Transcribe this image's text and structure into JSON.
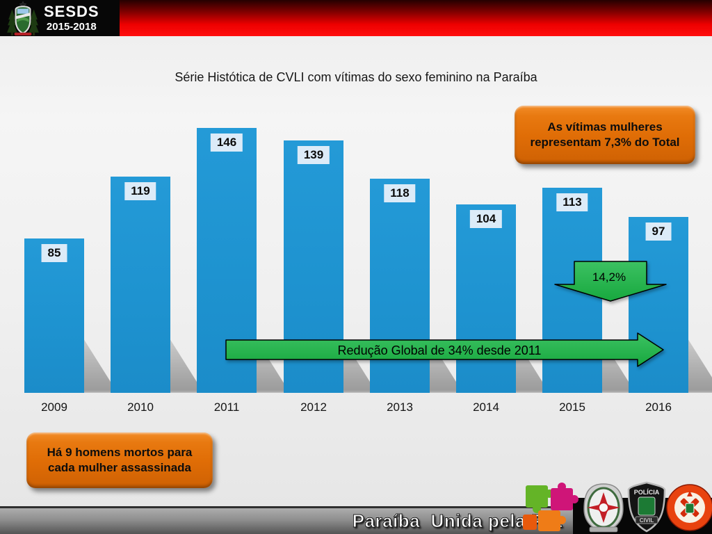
{
  "header": {
    "org": "SESDS",
    "period": "2015-2018"
  },
  "title": "Série Histótica de CVLI com vítimas do sexo feminino na Paraíba",
  "chart_data": {
    "type": "bar",
    "title": "Série Histótica de CVLI com vítimas do sexo feminino na Paraíba",
    "categories": [
      "2009",
      "2010",
      "2011",
      "2012",
      "2013",
      "2014",
      "2015",
      "2016"
    ],
    "values": [
      85,
      119,
      146,
      139,
      118,
      104,
      113,
      97
    ],
    "xlabel": "",
    "ylabel": "",
    "ylim": [
      0,
      160
    ],
    "grid": false,
    "legend": false,
    "data_labels": true,
    "bar_color": "#1E96D4",
    "value_label_bg": "#DCEBF8"
  },
  "annotations": {
    "women_share_line1": "As vítimas mulheres",
    "women_share_line2": "representam 7,3% do Total",
    "last_year_drop": "14,2%",
    "global_reduction": "Redução Global de 34% desde 2011",
    "men_ratio_line1": "Há 9 homens mortos para",
    "men_ratio_line2": "cada mulher assassinada"
  },
  "footer": {
    "slogan": "Paraíba  Unida pela Paz",
    "badge_policia_civil_top": "POLÍCIA",
    "badge_policia_civil_bottom": "CIVIL"
  },
  "colors": {
    "bar_blue": "#1E96D4",
    "arrow_green": "#25B04B",
    "callout_orange": "#E06D06",
    "header_red": "#EE0000"
  }
}
